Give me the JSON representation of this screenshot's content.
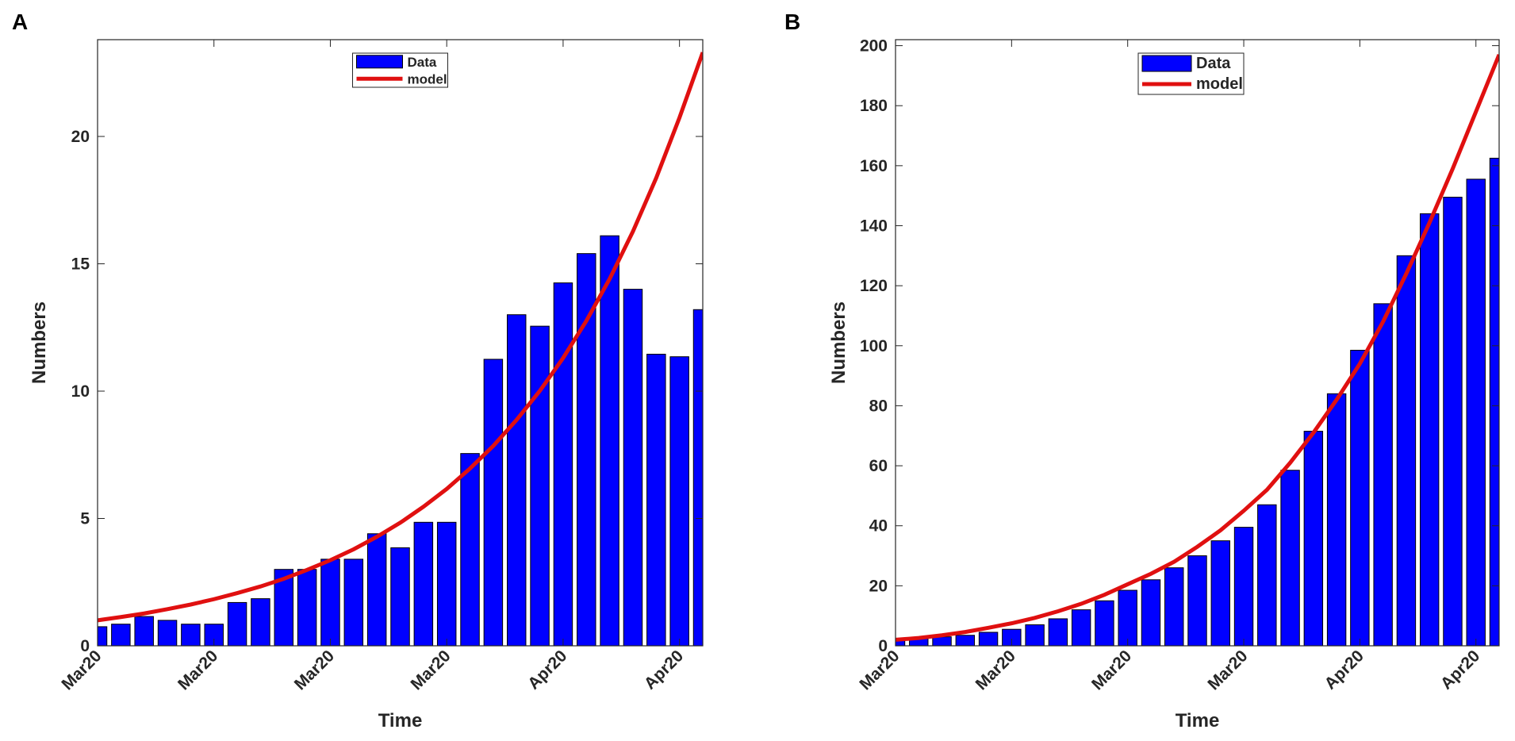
{
  "chart_data": [
    {
      "type": "bar",
      "label": "A",
      "xlabel": "Time",
      "ylabel": "Numbers",
      "categories": [
        "Mar20",
        null,
        null,
        null,
        null,
        "Mar20",
        null,
        null,
        null,
        null,
        "Mar20",
        null,
        null,
        null,
        null,
        "Mar20",
        null,
        null,
        null,
        null,
        "Apr20",
        null,
        null,
        null,
        null,
        "Apr20",
        null
      ],
      "ylim": [
        0,
        23.8
      ],
      "yticks": [
        0,
        5,
        10,
        15,
        20
      ],
      "legend": "top",
      "series": [
        {
          "name": "Data",
          "type": "bar",
          "color": "#0000ff",
          "values": [
            0.75,
            0.85,
            1.15,
            1.0,
            0.85,
            0.85,
            1.7,
            1.85,
            3.0,
            3.0,
            3.4,
            3.4,
            4.4,
            3.85,
            4.85,
            4.85,
            7.55,
            11.25,
            13.0,
            12.55,
            14.25,
            15.4,
            16.1,
            14.0,
            11.45,
            11.35,
            13.2
          ]
        },
        {
          "name": "model",
          "type": "line",
          "color": "#e01010",
          "values": [
            1.0,
            1.13,
            1.27,
            1.44,
            1.62,
            1.83,
            2.07,
            2.33,
            2.63,
            2.98,
            3.36,
            3.79,
            4.28,
            4.83,
            5.46,
            6.16,
            6.96,
            7.85,
            8.87,
            10.01,
            11.3,
            12.76,
            14.41,
            16.27,
            18.37,
            20.74,
            23.3
          ]
        }
      ]
    },
    {
      "type": "bar",
      "label": "B",
      "xlabel": "Time",
      "ylabel": "Numbers",
      "categories": [
        "Mar20",
        null,
        null,
        null,
        null,
        "Mar20",
        null,
        null,
        null,
        null,
        "Mar20",
        null,
        null,
        null,
        null,
        "Mar20",
        null,
        null,
        null,
        null,
        "Apr20",
        null,
        null,
        null,
        null,
        "Apr20",
        null
      ],
      "ylim": [
        0,
        202
      ],
      "yticks": [
        0,
        20,
        40,
        60,
        80,
        100,
        120,
        140,
        160,
        180,
        200
      ],
      "legend": "top",
      "series": [
        {
          "name": "Data",
          "type": "bar",
          "color": "#0000ff",
          "values": [
            2,
            2.5,
            3,
            3.5,
            4.5,
            5.5,
            7,
            9,
            12,
            15,
            18.5,
            22,
            26,
            30,
            35,
            39.5,
            47,
            58.5,
            71.5,
            84,
            98.5,
            114,
            130,
            144,
            149.5,
            155.5,
            162.5
          ]
        },
        {
          "name": "model",
          "type": "line",
          "color": "#e01010",
          "values": [
            2,
            2.6,
            3.5,
            4.6,
            6,
            7.5,
            9.3,
            11.5,
            14,
            17,
            20.5,
            24,
            28,
            33,
            38.5,
            45,
            52,
            61,
            71,
            82,
            94,
            108,
            124,
            141,
            159,
            178,
            197
          ]
        }
      ]
    }
  ]
}
